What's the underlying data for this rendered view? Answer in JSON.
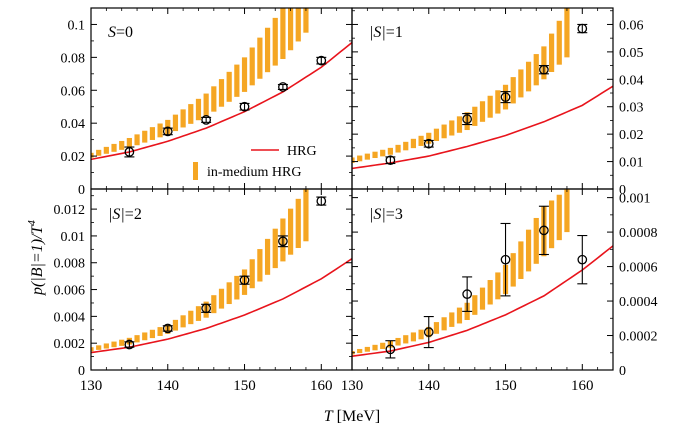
{
  "figure": {
    "ylabel": "p(|B|=1)/T",
    "ylabel_sup": "4",
    "xlabel": "T [MeV]"
  },
  "legend": {
    "hrg": "HRG",
    "inmedium": "in-medium HRG"
  },
  "colors": {
    "hrg_line": "#e8141c",
    "inmedium_band": "#f5a623",
    "data_marker": "#000000"
  },
  "chart_data": [
    {
      "type": "line",
      "panel": "top-left",
      "label_prefix": "S",
      "label_suffix": "=0",
      "x_ticks": [
        130,
        140,
        150,
        160
      ],
      "xlim": [
        130,
        164
      ],
      "ylim": [
        0,
        0.11
      ],
      "y_ticks": [
        0,
        0.02,
        0.04,
        0.06,
        0.08,
        0.1
      ],
      "y_tick_labels": [
        "0",
        "0.02",
        "0.04",
        "0.06",
        "0.08",
        "0.1"
      ],
      "y_axis_side": "left",
      "data": [
        {
          "x": 135,
          "y": 0.0225,
          "err": 0.003
        },
        {
          "x": 140,
          "y": 0.035,
          "err": 0.002
        },
        {
          "x": 145,
          "y": 0.042,
          "err": 0.0015
        },
        {
          "x": 150,
          "y": 0.05,
          "err": 0.002
        },
        {
          "x": 155,
          "y": 0.062,
          "err": 0.0015
        },
        {
          "x": 160,
          "y": 0.078,
          "err": 0.002
        }
      ],
      "hrg": [
        [
          130,
          0.018
        ],
        [
          135,
          0.0225
        ],
        [
          140,
          0.029
        ],
        [
          145,
          0.037
        ],
        [
          150,
          0.047
        ],
        [
          155,
          0.059
        ],
        [
          160,
          0.074
        ],
        [
          164,
          0.089
        ]
      ],
      "band": [
        [
          130,
          0.019,
          0.022
        ],
        [
          135,
          0.025,
          0.031
        ],
        [
          140,
          0.033,
          0.042
        ],
        [
          145,
          0.044,
          0.058
        ],
        [
          150,
          0.059,
          0.08
        ],
        [
          155,
          0.079,
          0.11
        ],
        [
          158,
          0.095,
          0.13
        ]
      ]
    },
    {
      "type": "line",
      "panel": "top-right",
      "label_prefix": "|S|",
      "label_suffix": "=1",
      "x_ticks": [
        130,
        140,
        150,
        160
      ],
      "xlim": [
        130,
        164
      ],
      "ylim": [
        0,
        0.066
      ],
      "y_ticks": [
        0,
        0.01,
        0.02,
        0.03,
        0.04,
        0.05,
        0.06
      ],
      "y_tick_labels": [
        "0",
        "0.01",
        "0.02",
        "0.03",
        "0.04",
        "0.05",
        "0.06"
      ],
      "y_axis_side": "right",
      "data": [
        {
          "x": 135,
          "y": 0.0105,
          "err": 0.0012
        },
        {
          "x": 140,
          "y": 0.0165,
          "err": 0.0012
        },
        {
          "x": 145,
          "y": 0.0255,
          "err": 0.002
        },
        {
          "x": 150,
          "y": 0.0335,
          "err": 0.002
        },
        {
          "x": 155,
          "y": 0.0435,
          "err": 0.0015
        },
        {
          "x": 160,
          "y": 0.0585,
          "err": 0.0015
        }
      ],
      "hrg": [
        [
          130,
          0.0075
        ],
        [
          135,
          0.0095
        ],
        [
          140,
          0.012
        ],
        [
          145,
          0.0155
        ],
        [
          150,
          0.0195
        ],
        [
          155,
          0.0245
        ],
        [
          160,
          0.0305
        ],
        [
          164,
          0.0375
        ]
      ],
      "band": [
        [
          130,
          0.0095,
          0.0115
        ],
        [
          135,
          0.0125,
          0.015
        ],
        [
          140,
          0.0165,
          0.0205
        ],
        [
          145,
          0.0215,
          0.028
        ],
        [
          150,
          0.029,
          0.038
        ],
        [
          155,
          0.04,
          0.052
        ],
        [
          158,
          0.048,
          0.066
        ]
      ]
    },
    {
      "type": "line",
      "panel": "bottom-left",
      "label_prefix": "|S|",
      "label_suffix": "=2",
      "x_ticks": [
        130,
        140,
        150,
        160
      ],
      "xlim": [
        130,
        164
      ],
      "ylim": [
        0,
        0.0135
      ],
      "y_ticks": [
        0,
        0.002,
        0.004,
        0.006,
        0.008,
        0.01,
        0.012
      ],
      "y_tick_labels": [
        "0",
        "0.002",
        "0.004",
        "0.006",
        "0.008",
        "0.01",
        "0.012"
      ],
      "y_axis_side": "left",
      "data": [
        {
          "x": 135,
          "y": 0.0019,
          "err": 0.0002
        },
        {
          "x": 140,
          "y": 0.0031,
          "err": 0.0002
        },
        {
          "x": 145,
          "y": 0.0046,
          "err": 0.0003
        },
        {
          "x": 150,
          "y": 0.0067,
          "err": 0.0003
        },
        {
          "x": 155,
          "y": 0.0096,
          "err": 0.0004
        },
        {
          "x": 160,
          "y": 0.0126,
          "err": 0.0003
        }
      ],
      "hrg": [
        [
          130,
          0.0013
        ],
        [
          135,
          0.0017
        ],
        [
          140,
          0.0023
        ],
        [
          145,
          0.0031
        ],
        [
          150,
          0.0041
        ],
        [
          155,
          0.0053
        ],
        [
          160,
          0.0068
        ],
        [
          164,
          0.0083
        ]
      ],
      "band": [
        [
          130,
          0.0014,
          0.0017
        ],
        [
          135,
          0.0019,
          0.0024
        ],
        [
          140,
          0.0027,
          0.0034
        ],
        [
          145,
          0.0039,
          0.0051
        ],
        [
          150,
          0.0056,
          0.0075
        ],
        [
          155,
          0.0081,
          0.0113
        ],
        [
          158,
          0.0096,
          0.0135
        ]
      ]
    },
    {
      "type": "line",
      "panel": "bottom-right",
      "label_prefix": "|S|",
      "label_suffix": "=3",
      "x_ticks": [
        130,
        140,
        150,
        160
      ],
      "xlim": [
        130,
        164
      ],
      "ylim": [
        0,
        0.00105
      ],
      "y_ticks": [
        0,
        0.0002,
        0.0004,
        0.0006,
        0.0008,
        0.001
      ],
      "y_tick_labels": [
        "0",
        "0.0002",
        "0.0004",
        "0.0006",
        "0.0008",
        "0.001"
      ],
      "y_axis_side": "right",
      "data": [
        {
          "x": 135,
          "y": 0.00012,
          "err": 5e-05
        },
        {
          "x": 140,
          "y": 0.00022,
          "err": 9e-05
        },
        {
          "x": 145,
          "y": 0.00044,
          "err": 0.0001
        },
        {
          "x": 150,
          "y": 0.00064,
          "err": 0.00021
        },
        {
          "x": 155,
          "y": 0.00081,
          "err": 0.00014
        },
        {
          "x": 160,
          "y": 0.00064,
          "err": 0.00014
        }
      ],
      "hrg": [
        [
          130,
          8e-05
        ],
        [
          135,
          0.00011
        ],
        [
          140,
          0.00016
        ],
        [
          145,
          0.00023
        ],
        [
          150,
          0.00032
        ],
        [
          155,
          0.00043
        ],
        [
          160,
          0.00058
        ],
        [
          164,
          0.00072
        ]
      ],
      "band": [
        [
          130,
          9e-05,
          0.00011
        ],
        [
          135,
          0.00013,
          0.00017
        ],
        [
          140,
          0.00019,
          0.00025
        ],
        [
          145,
          0.00029,
          0.00039
        ],
        [
          150,
          0.00044,
          0.00061
        ],
        [
          155,
          0.00066,
          0.00095
        ],
        [
          158,
          0.0008,
          0.00105
        ]
      ]
    }
  ]
}
